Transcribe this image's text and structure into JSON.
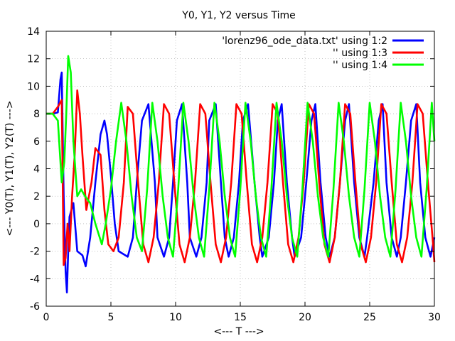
{
  "chart_data": {
    "type": "line",
    "title": "Y0, Y1, Y2 versus Time",
    "xlabel": "<--- T --->",
    "ylabel": "<--- Y0(T), Y1(T), Y2(T) --->",
    "xlim": [
      0,
      30
    ],
    "ylim": [
      -6,
      14
    ],
    "xticks": [
      0,
      5,
      10,
      15,
      20,
      25,
      30
    ],
    "yticks": [
      -6,
      -4,
      -2,
      0,
      2,
      4,
      6,
      8,
      10,
      12,
      14
    ],
    "grid": true,
    "legend_position": "top-right",
    "series": [
      {
        "name": "'lorenz96_ode_data.txt' using 1:2",
        "color": "#0000ff",
        "x": [
          0,
          0.5,
          0.9,
          1.1,
          1.2,
          1.35,
          1.5,
          1.6,
          1.7,
          1.8,
          2.1,
          2.4,
          2.8,
          3.05,
          3.4,
          3.8,
          4.2,
          4.5,
          4.7,
          5.0,
          5.3,
          5.6,
          6.3,
          6.7,
          7.0,
          7.4,
          7.9,
          8.4,
          8.6,
          9.1,
          9.5,
          9.8,
          10.1,
          10.5,
          10.9,
          11.1,
          11.6,
          12.0,
          12.4,
          12.6,
          13.1,
          13.5,
          13.8,
          14.1,
          14.5,
          14.9,
          15.2,
          15.6,
          16.1,
          16.5,
          16.7,
          17.2,
          17.6,
          17.9,
          18.2,
          18.6,
          19.0,
          19.2,
          19.7,
          20.1,
          20.5,
          20.8,
          21.2,
          21.6,
          21.9,
          22.3,
          22.7,
          23.1,
          23.4,
          23.8,
          24.2,
          24.6,
          24.8,
          25.3,
          25.7,
          26.0,
          26.3,
          26.7,
          27.1,
          27.4,
          27.8,
          28.2,
          28.6,
          28.9,
          29.3,
          29.7,
          30.0
        ],
        "values": [
          8,
          8,
          8.1,
          10.5,
          11,
          2,
          -3.5,
          -5,
          -2,
          0.5,
          1.5,
          -2,
          -2.3,
          -3.1,
          -1,
          3,
          6.5,
          7.5,
          6.5,
          3.5,
          0,
          -2,
          -2.4,
          -1,
          3,
          7.5,
          8.7,
          3,
          -1,
          -2.4,
          -1,
          3,
          7.5,
          8.7,
          3,
          -1,
          -2.4,
          -1,
          3,
          7.5,
          8.7,
          3,
          -1,
          -2.4,
          -1,
          3,
          7.5,
          8.7,
          3,
          -1,
          -2.4,
          -1,
          3,
          7.5,
          8.7,
          3,
          -1,
          -2.4,
          -1,
          3,
          7.5,
          8.7,
          3,
          -1,
          -2.4,
          -1,
          3,
          7.5,
          8.7,
          3,
          -1,
          -2.4,
          -1,
          3,
          7.5,
          8.7,
          3,
          -1,
          -2.4,
          -1,
          3,
          7.5,
          8.7,
          3,
          -1,
          -2.4,
          -1
        ]
      },
      {
        "name": "'' using 1:3",
        "color": "#ff0000",
        "x": [
          0,
          0.5,
          0.9,
          1.2,
          1.35,
          1.5,
          1.65,
          1.8,
          2.0,
          2.2,
          2.4,
          2.6,
          2.8,
          3.1,
          3.5,
          3.8,
          4.2,
          4.5,
          4.8,
          5.2,
          5.6,
          6.0,
          6.3,
          6.7,
          7.1,
          7.5,
          7.9,
          8.3,
          8.7,
          9.1,
          9.5,
          9.9,
          10.3,
          10.7,
          11.1,
          11.5,
          11.9,
          12.3,
          12.7,
          13.1,
          13.5,
          13.9,
          14.3,
          14.7,
          15.1,
          15.5,
          15.9,
          16.3,
          16.7,
          17.1,
          17.5,
          17.9,
          18.3,
          18.7,
          19.1,
          19.5,
          19.9,
          20.3,
          20.7,
          21.1,
          21.5,
          21.9,
          22.3,
          22.7,
          23.1,
          23.5,
          23.9,
          24.3,
          24.7,
          25.1,
          25.5,
          25.9,
          26.3,
          26.7,
          27.1,
          27.5,
          27.9,
          28.3,
          28.7,
          29.1,
          29.5,
          29.9,
          30.0
        ],
        "values": [
          8,
          8,
          8.5,
          9,
          -3,
          -2.5,
          0,
          -2,
          2,
          5,
          9.7,
          8,
          5,
          1,
          3,
          5.5,
          5,
          1,
          -1.5,
          -2,
          -1,
          3,
          8.5,
          8,
          3,
          -1.5,
          -2.8,
          -1,
          3,
          8.7,
          8,
          3,
          -1.5,
          -2.8,
          -1,
          3,
          8.7,
          8,
          3,
          -1.5,
          -2.8,
          -1,
          3,
          8.7,
          8,
          3,
          -1.5,
          -2.8,
          -1,
          3,
          8.7,
          8,
          3,
          -1.5,
          -2.8,
          -1,
          3,
          8.7,
          8,
          3,
          -1.5,
          -2.8,
          -1,
          3,
          8.7,
          8,
          3,
          -1.5,
          -2.8,
          -1,
          3,
          8.7,
          8,
          3,
          -1.5,
          -2.8,
          -1,
          3,
          8.7,
          8,
          3,
          -1.5,
          -2.8
        ]
      },
      {
        "name": "'' using 1:4",
        "color": "#00ff00",
        "x": [
          0,
          0.5,
          0.9,
          1.2,
          1.4,
          1.55,
          1.7,
          1.9,
          2.1,
          2.4,
          2.7,
          3.0,
          3.4,
          3.8,
          4.3,
          4.6,
          5.0,
          5.4,
          5.8,
          6.2,
          6.6,
          7.0,
          7.4,
          7.8,
          8.2,
          8.6,
          9.0,
          9.4,
          9.8,
          10.2,
          10.6,
          11.0,
          11.4,
          11.8,
          12.2,
          12.6,
          13.0,
          13.4,
          13.8,
          14.2,
          14.6,
          15.0,
          15.4,
          15.8,
          16.2,
          16.6,
          17.0,
          17.4,
          17.8,
          18.2,
          18.6,
          19.0,
          19.4,
          19.8,
          20.2,
          20.6,
          21.0,
          21.4,
          21.8,
          22.2,
          22.6,
          23.0,
          23.4,
          23.8,
          24.2,
          24.6,
          25.0,
          25.4,
          25.8,
          26.2,
          26.6,
          27.0,
          27.4,
          27.8,
          28.2,
          28.6,
          29.0,
          29.4,
          29.8,
          30.0
        ],
        "values": [
          8,
          8,
          7.5,
          3,
          4.5,
          8,
          12.2,
          11,
          6,
          2,
          2.5,
          2,
          1.5,
          0,
          -1.5,
          0,
          2.5,
          6,
          8.8,
          6,
          2,
          -1,
          -2,
          2.5,
          8.8,
          6,
          2,
          -1,
          -2.4,
          2.5,
          8.8,
          6,
          2,
          -1,
          -2.4,
          2.5,
          8.8,
          6,
          2,
          -1,
          -2.4,
          2.5,
          8.8,
          6,
          2,
          -1,
          -2.4,
          2.5,
          8.8,
          6,
          2,
          -1,
          -2.4,
          2.5,
          8.8,
          6,
          2,
          -1,
          -2.4,
          2.5,
          8.8,
          6,
          2,
          -1,
          -2.4,
          2.5,
          8.8,
          6,
          2,
          -1,
          -2.4,
          2.5,
          8.8,
          6,
          2,
          -1,
          -2.4,
          2.5,
          8.8,
          6
        ]
      }
    ]
  }
}
